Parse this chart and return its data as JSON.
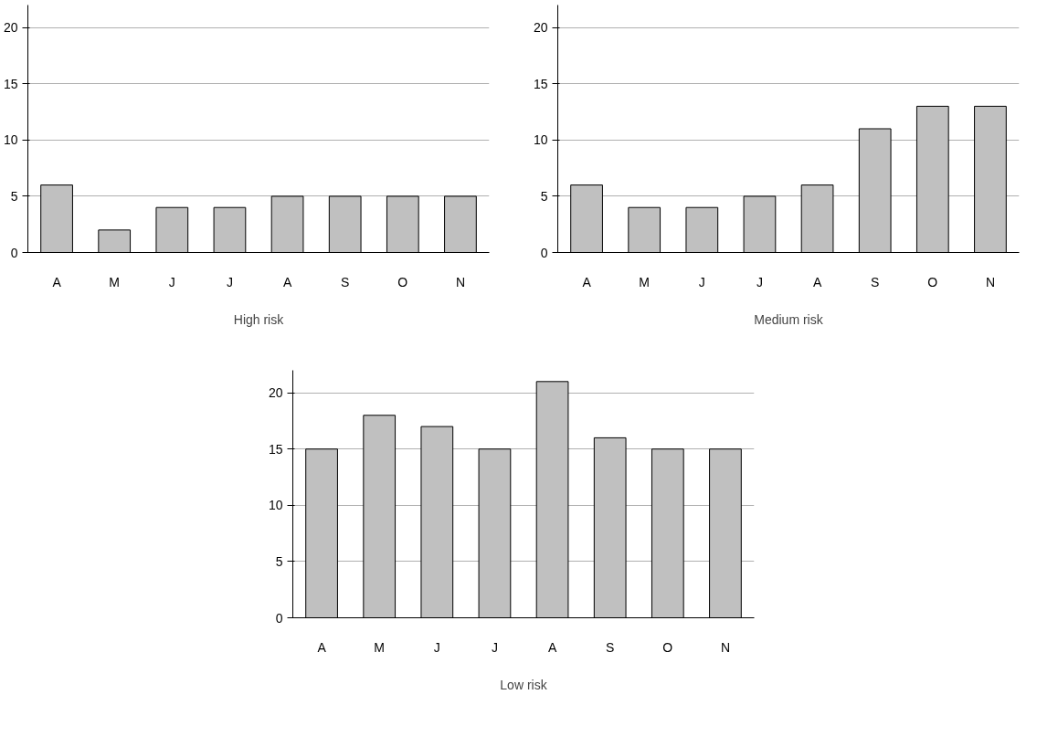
{
  "chart_data": [
    {
      "type": "bar",
      "xlabel": "High risk",
      "categories": [
        "A",
        "M",
        "J",
        "J",
        "A",
        "S",
        "O",
        "N"
      ],
      "values": [
        6,
        2,
        4,
        4,
        5,
        5,
        5,
        5
      ],
      "color": "#c0c0c0",
      "ylim": [
        0,
        22
      ],
      "yticks": [
        0,
        5,
        10,
        15,
        20
      ],
      "grid": "y"
    },
    {
      "type": "bar",
      "xlabel": "Medium risk",
      "categories": [
        "A",
        "M",
        "J",
        "J",
        "A",
        "S",
        "O",
        "N"
      ],
      "values": [
        6,
        4,
        4,
        5,
        6,
        11,
        13,
        13
      ],
      "color": "#c0c0c0",
      "ylim": [
        0,
        22
      ],
      "yticks": [
        0,
        5,
        10,
        15,
        20
      ],
      "grid": "y"
    },
    {
      "type": "bar",
      "xlabel": "Low risk",
      "categories": [
        "A",
        "M",
        "J",
        "J",
        "A",
        "S",
        "O",
        "N"
      ],
      "values": [
        15,
        18,
        17,
        15,
        21,
        16,
        15,
        15
      ],
      "color": "#c0c0c0",
      "ylim": [
        0,
        22
      ],
      "yticks": [
        0,
        5,
        10,
        15,
        20
      ],
      "grid": "y"
    }
  ]
}
